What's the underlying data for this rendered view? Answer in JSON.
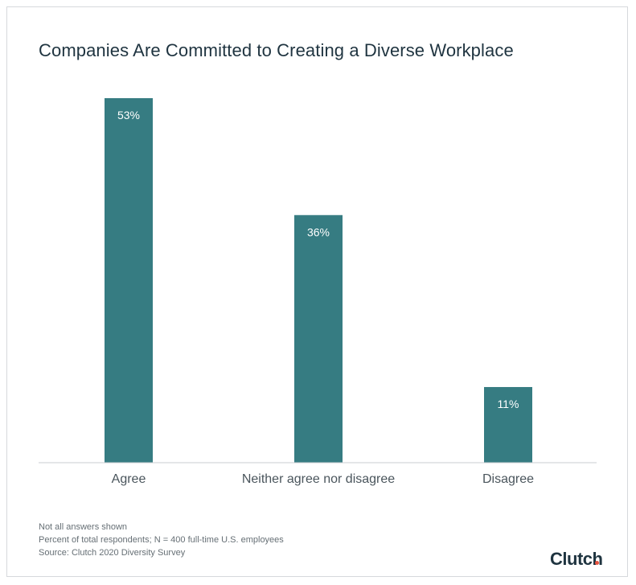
{
  "chart_data": {
    "type": "bar",
    "title": "Companies Are Committed to Creating a Diverse Workplace",
    "categories": [
      "Agree",
      "Neither agree nor disagree",
      "Disagree"
    ],
    "values": [
      53,
      36,
      11
    ],
    "data_labels": [
      "53%",
      "36%",
      "11%"
    ],
    "ylim": [
      0,
      53
    ],
    "grid": false,
    "bar_color": "#367c82"
  },
  "footnotes": [
    "Not all answers shown",
    "Percent of total respondents; N = 400 full-time U.S. employees",
    "Source: Clutch 2020 Diversity Survey"
  ],
  "logo": {
    "text": "Clutch",
    "icon": "clutch-logo",
    "accent_color": "#e8533f"
  }
}
